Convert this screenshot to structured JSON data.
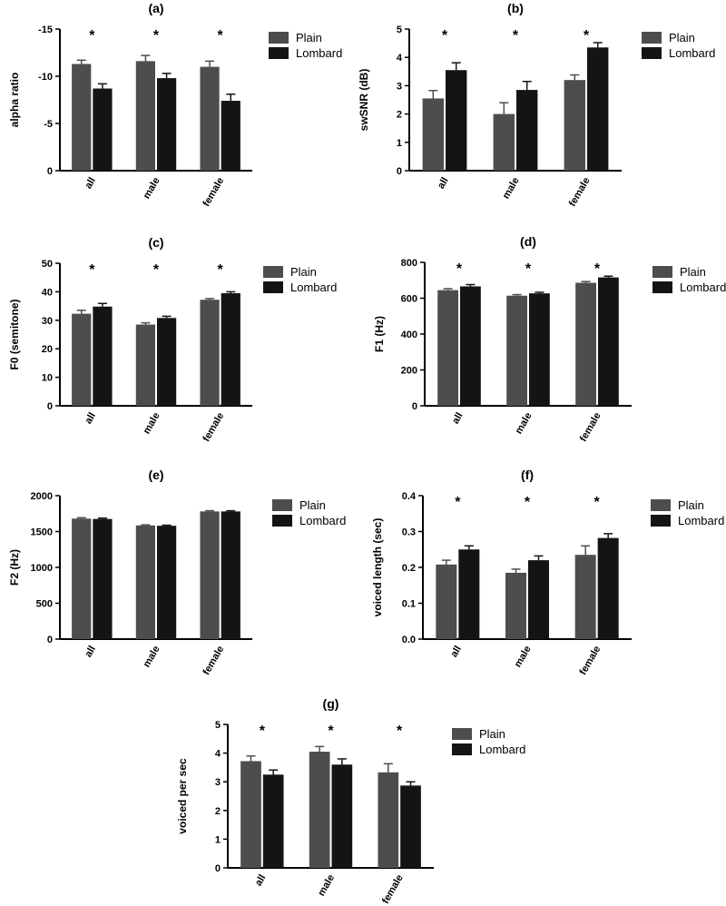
{
  "colors": {
    "plain": "#4d4d4d",
    "lombard": "#141414",
    "axis": "#000000"
  },
  "chart_data": [
    {
      "type": "bar",
      "title": "(a)",
      "ylabel": "alpha ratio",
      "categories": [
        "all",
        "male",
        "female"
      ],
      "ylim": [
        0,
        -15
      ],
      "yticks": [
        "0",
        "-5",
        "-10",
        "-15"
      ],
      "series": [
        {
          "name": "Plain",
          "values": [
            -11.3,
            -11.6,
            -11.0
          ],
          "errors": [
            0.4,
            0.6,
            0.6
          ]
        },
        {
          "name": "Lombard",
          "values": [
            -8.7,
            -9.8,
            -7.4
          ],
          "errors": [
            0.5,
            0.5,
            0.7
          ]
        }
      ],
      "significance": [
        "*",
        "*",
        "*"
      ],
      "legend": "right",
      "xtick_rotation": -60
    },
    {
      "type": "bar",
      "title": "(b)",
      "ylabel": "swSNR (dB)",
      "categories": [
        "all",
        "male",
        "female"
      ],
      "ylim": [
        0,
        5
      ],
      "yticks": [
        "0",
        "1",
        "2",
        "3",
        "4",
        "5"
      ],
      "series": [
        {
          "name": "Plain",
          "values": [
            2.55,
            2.0,
            3.2
          ],
          "errors": [
            0.28,
            0.4,
            0.18
          ]
        },
        {
          "name": "Lombard",
          "values": [
            3.55,
            2.85,
            4.35
          ],
          "errors": [
            0.26,
            0.3,
            0.17
          ]
        }
      ],
      "significance": [
        "*",
        "*",
        "*"
      ],
      "legend": "right",
      "xtick_rotation": -60
    },
    {
      "type": "bar",
      "title": "(c)",
      "ylabel": "F0 (semitone)",
      "categories": [
        "all",
        "male",
        "female"
      ],
      "ylim": [
        0,
        50
      ],
      "yticks": [
        "0",
        "10",
        "20",
        "30",
        "40",
        "50"
      ],
      "series": [
        {
          "name": "Plain",
          "values": [
            32.3,
            28.5,
            37.2
          ],
          "errors": [
            1.2,
            0.6,
            0.4
          ]
        },
        {
          "name": "Lombard",
          "values": [
            34.8,
            30.8,
            39.5
          ],
          "errors": [
            1.1,
            0.6,
            0.5
          ]
        }
      ],
      "significance": [
        "*",
        "*",
        "*"
      ],
      "legend": "right",
      "xtick_rotation": -60
    },
    {
      "type": "bar",
      "title": "(d)",
      "ylabel": "F1 (Hz)",
      "categories": [
        "all",
        "male",
        "female"
      ],
      "ylim": [
        0,
        800
      ],
      "yticks": [
        "0",
        "200",
        "400",
        "600",
        "800"
      ],
      "series": [
        {
          "name": "Plain",
          "values": [
            645,
            614,
            686
          ],
          "errors": [
            8,
            6,
            7
          ]
        },
        {
          "name": "Lombard",
          "values": [
            666,
            627,
            716
          ],
          "errors": [
            10,
            6,
            7
          ]
        }
      ],
      "significance": [
        "*",
        "*",
        "*"
      ],
      "legend": "right",
      "xtick_rotation": -60
    },
    {
      "type": "bar",
      "title": "(e)",
      "ylabel": "F2 (Hz)",
      "categories": [
        "all",
        "male",
        "female"
      ],
      "ylim": [
        0,
        2000
      ],
      "yticks": [
        "0",
        "500",
        "1000",
        "1500",
        "2000"
      ],
      "series": [
        {
          "name": "Plain",
          "values": [
            1680,
            1585,
            1780
          ],
          "errors": [
            12,
            8,
            10
          ]
        },
        {
          "name": "Lombard",
          "values": [
            1675,
            1580,
            1780
          ],
          "errors": [
            12,
            8,
            10
          ]
        }
      ],
      "significance": [
        "",
        "",
        ""
      ],
      "legend": "right",
      "xtick_rotation": -60
    },
    {
      "type": "bar",
      "title": "(f)",
      "ylabel": "voiced length (sec)",
      "categories": [
        "all",
        "male",
        "female"
      ],
      "ylim": [
        0,
        0.4
      ],
      "yticks": [
        "0.0",
        "0.1",
        "0.2",
        "0.3",
        "0.4"
      ],
      "series": [
        {
          "name": "Plain",
          "values": [
            0.208,
            0.185,
            0.235
          ],
          "errors": [
            0.012,
            0.01,
            0.025
          ]
        },
        {
          "name": "Lombard",
          "values": [
            0.25,
            0.22,
            0.282
          ],
          "errors": [
            0.01,
            0.012,
            0.012
          ]
        }
      ],
      "significance": [
        "*",
        "*",
        "*"
      ],
      "legend": "right",
      "xtick_rotation": -60
    },
    {
      "type": "bar",
      "title": "(g)",
      "ylabel": "voiced per sec",
      "categories": [
        "all",
        "male",
        "female"
      ],
      "ylim": [
        0,
        5
      ],
      "yticks": [
        "0",
        "1",
        "2",
        "3",
        "4",
        "5"
      ],
      "series": [
        {
          "name": "Plain",
          "values": [
            3.72,
            4.05,
            3.33
          ],
          "errors": [
            0.18,
            0.18,
            0.3
          ]
        },
        {
          "name": "Lombard",
          "values": [
            3.25,
            3.6,
            2.87
          ],
          "errors": [
            0.16,
            0.2,
            0.13
          ]
        }
      ],
      "significance": [
        "*",
        "*",
        "*"
      ],
      "legend": "right",
      "xtick_rotation": -60
    }
  ]
}
